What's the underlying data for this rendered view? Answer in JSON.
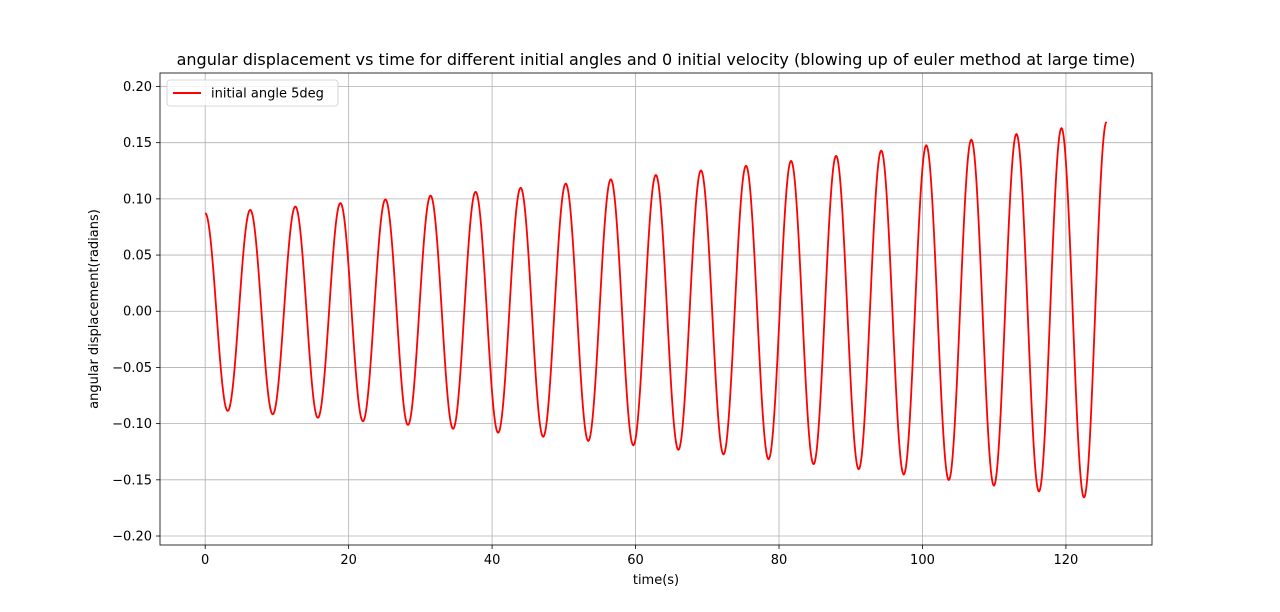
{
  "chart_data": {
    "type": "line",
    "title": "angular displacement vs time for different initial angles and 0 initial velocity (blowing up of euler method at large time)",
    "xlabel": "time(s)",
    "ylabel": "angular displacement(radians)",
    "xlim": [
      -6.3,
      132
    ],
    "ylim": [
      -0.208,
      0.212
    ],
    "xticks": [
      0,
      20,
      40,
      60,
      80,
      100,
      120
    ],
    "xtick_labels": [
      "0",
      "20",
      "40",
      "60",
      "80",
      "100",
      "120"
    ],
    "yticks": [
      -0.2,
      -0.15,
      -0.1,
      -0.05,
      0.0,
      0.05,
      0.1,
      0.15,
      0.2
    ],
    "ytick_labels": [
      "−0.20",
      "−0.15",
      "−0.10",
      "−0.05",
      "0.00",
      "0.05",
      "0.10",
      "0.15",
      "0.20"
    ],
    "grid": true,
    "legend_position": "top-left",
    "series": [
      {
        "name": "initial angle 5deg",
        "color": "#ff0000",
        "x": [
          0,
          3.14,
          6.28,
          9.42,
          12.57,
          15.71,
          18.85,
          21.99,
          25.13,
          28.27,
          31.42,
          34.56,
          37.7,
          40.84,
          43.98,
          47.12,
          50.27,
          53.41,
          56.55,
          59.69,
          62.83,
          65.97,
          69.12,
          72.26,
          75.4,
          78.54,
          81.68,
          84.82,
          87.96,
          91.11,
          94.25,
          97.39,
          100.53,
          103.67,
          106.81,
          109.96,
          113.1,
          116.24,
          119.38,
          122.52,
          125.66
        ],
        "y": [
          0.0873,
          -0.0887,
          0.0902,
          -0.0917,
          0.0932,
          -0.0948,
          0.0963,
          -0.0979,
          0.0996,
          -0.1012,
          0.1029,
          -0.1046,
          0.1063,
          -0.1081,
          0.1099,
          -0.1117,
          0.1136,
          -0.1154,
          0.1174,
          -0.1193,
          0.1213,
          -0.1233,
          0.1253,
          -0.1274,
          0.1295,
          -0.1317,
          0.1338,
          -0.1361,
          0.1383,
          -0.1406,
          0.143,
          -0.1453,
          0.1477,
          -0.1502,
          0.1527,
          -0.1552,
          0.1578,
          -0.1604,
          0.163,
          -0.1657,
          0.1685
        ]
      }
    ]
  }
}
